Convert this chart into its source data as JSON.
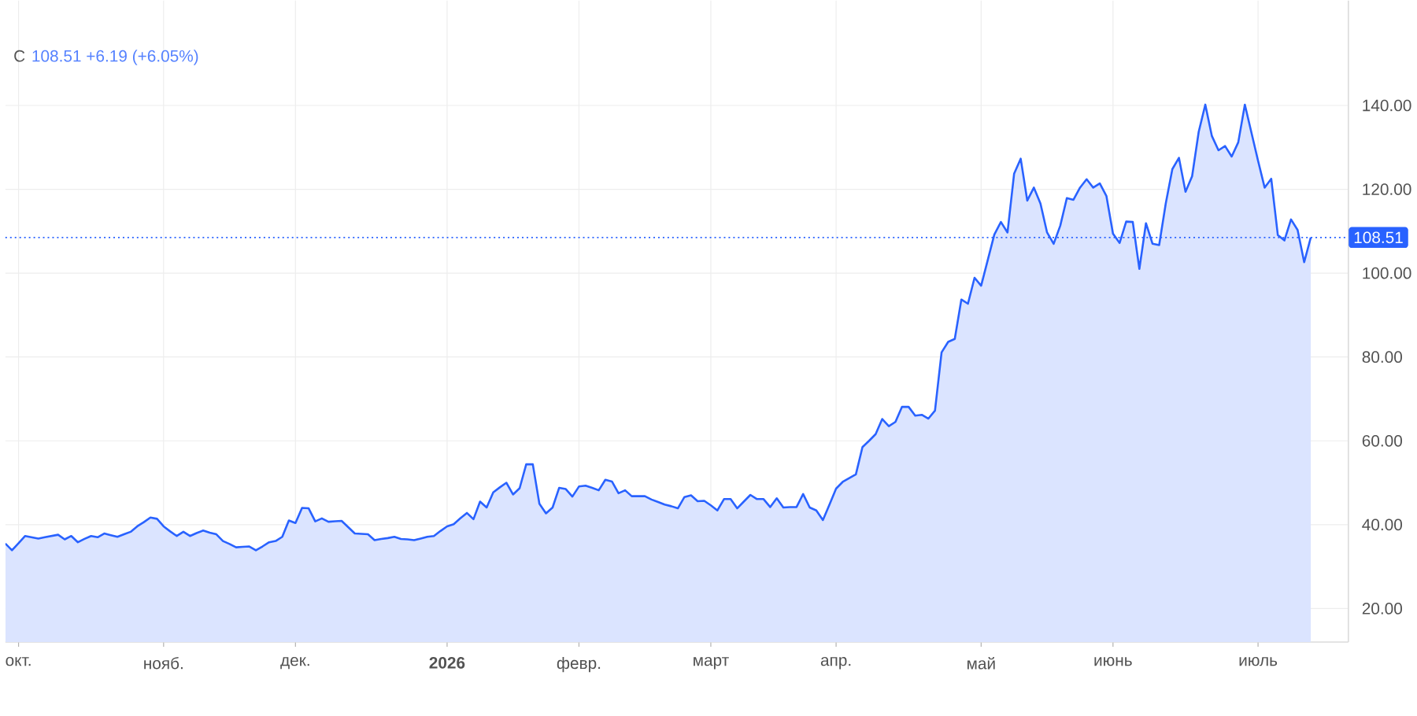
{
  "chart_data": {
    "type": "area",
    "title": "C",
    "subtitle": "108.51 +6.19 (+6.05%)",
    "color": "#2962ff",
    "categories": [
      null,
      null,
      "окт.",
      null,
      null,
      null,
      null,
      null,
      null,
      null,
      null,
      null,
      null,
      null,
      null,
      null,
      null,
      null,
      null,
      null,
      null,
      null,
      null,
      null,
      "нояб.",
      null,
      null,
      null,
      null,
      null,
      null,
      null,
      null,
      null,
      null,
      null,
      null,
      null,
      null,
      null,
      null,
      null,
      null,
      null,
      "дек.",
      null,
      null,
      null,
      null,
      null,
      null,
      null,
      null,
      null,
      null,
      null,
      null,
      null,
      null,
      null,
      null,
      null,
      null,
      null,
      null,
      null,
      null,
      "2026",
      null,
      null,
      null,
      null,
      null,
      null,
      null,
      null,
      null,
      null,
      null,
      null,
      null,
      null,
      null,
      null,
      null,
      null,
      null,
      "февр.",
      null,
      null,
      null,
      null,
      null,
      null,
      null,
      null,
      null,
      null,
      null,
      null,
      null,
      null,
      null,
      null,
      null,
      null,
      null,
      "март",
      null,
      null,
      null,
      null,
      null,
      null,
      null,
      null,
      null,
      null,
      null,
      null,
      null,
      null,
      null,
      null,
      null,
      null,
      "апр.",
      null,
      null,
      null,
      null,
      null,
      null,
      null,
      null,
      null,
      null,
      null,
      null,
      null,
      null,
      null,
      null,
      null,
      null,
      null,
      null,
      null,
      "май",
      null,
      null,
      null,
      null,
      null,
      null,
      null,
      null,
      null,
      null,
      null,
      null,
      null,
      null,
      null,
      null,
      null,
      null,
      null,
      "июнь",
      null,
      null,
      null,
      null,
      null,
      null,
      null,
      null,
      null,
      null,
      null,
      null,
      null,
      null,
      null,
      null,
      null,
      null,
      null,
      null,
      null,
      "июль",
      null,
      null,
      null,
      null,
      null,
      null,
      null,
      null
    ],
    "values": [
      35.5,
      33.9,
      35.6,
      37.3,
      37.0,
      36.7,
      37.0,
      37.3,
      37.6,
      36.5,
      37.3,
      35.8,
      36.6,
      37.3,
      37.0,
      37.9,
      37.5,
      37.1,
      37.7,
      38.3,
      39.6,
      40.6,
      41.7,
      41.4,
      39.6,
      38.4,
      37.3,
      38.3,
      37.3,
      38.0,
      38.6,
      38.1,
      37.7,
      36.1,
      35.4,
      34.6,
      34.7,
      34.8,
      33.9,
      34.8,
      35.8,
      36.1,
      37.1,
      41.0,
      40.4,
      44.0,
      43.9,
      40.8,
      41.5,
      40.7,
      40.8,
      40.9,
      39.4,
      37.9,
      37.8,
      37.7,
      36.3,
      36.6,
      36.8,
      37.1,
      36.6,
      36.5,
      36.3,
      36.7,
      37.1,
      37.3,
      38.5,
      39.6,
      40.1,
      41.5,
      42.8,
      41.3,
      45.5,
      44.1,
      47.7,
      48.9,
      50.0,
      47.2,
      48.7,
      54.4,
      54.4,
      45.0,
      42.7,
      44.1,
      48.8,
      48.5,
      46.7,
      49.1,
      49.3,
      48.8,
      48.2,
      50.7,
      50.3,
      47.5,
      48.2,
      46.8,
      46.8,
      46.8,
      46.0,
      45.4,
      44.8,
      44.4,
      43.9,
      46.6,
      47.0,
      45.6,
      45.7,
      44.6,
      43.4,
      46.1,
      46.1,
      43.9,
      45.5,
      47.1,
      46.1,
      46.1,
      44.2,
      46.3,
      44.1,
      44.2,
      44.2,
      47.3,
      44.1,
      43.4,
      41.1,
      44.8,
      48.6,
      50.2,
      51.1,
      52.0,
      58.5,
      60.0,
      61.6,
      65.2,
      63.5,
      64.5,
      68.1,
      68.1,
      66.0,
      66.2,
      65.3,
      67.2,
      81.1,
      83.6,
      84.3,
      93.7,
      92.7,
      98.9,
      97.0,
      103.1,
      109.2,
      112.2,
      109.7,
      123.7,
      127.3,
      117.3,
      120.4,
      116.6,
      109.7,
      107.0,
      111.3,
      117.9,
      117.5,
      120.4,
      122.4,
      120.4,
      121.4,
      118.4,
      109.4,
      107.2,
      112.3,
      112.2,
      101.0,
      111.9,
      107.0,
      106.7,
      116.6,
      124.8,
      127.5,
      119.4,
      123.1,
      133.7,
      140.2,
      132.7,
      129.3,
      130.3,
      127.8,
      131.2,
      140.2,
      133.5,
      126.8,
      120.4,
      122.5,
      109.1,
      107.8,
      112.8,
      110.3,
      102.6,
      108.51
    ],
    "ylim": [
      12,
      165
    ],
    "yticks": [
      {
        "value": 20,
        "label": "20.00"
      },
      {
        "value": 40,
        "label": "40.00"
      },
      {
        "value": 60,
        "label": "60.00"
      },
      {
        "value": 80,
        "label": "80.00"
      },
      {
        "value": 100,
        "label": "100.00"
      },
      {
        "value": 120,
        "label": "120.00"
      },
      {
        "value": 140,
        "label": "140.00"
      }
    ],
    "grid": true,
    "ref_lines": [
      {
        "axis": "y",
        "value": 108.51,
        "label": "108.51",
        "color": "#2962ff",
        "line_style": "dotted"
      }
    ]
  }
}
